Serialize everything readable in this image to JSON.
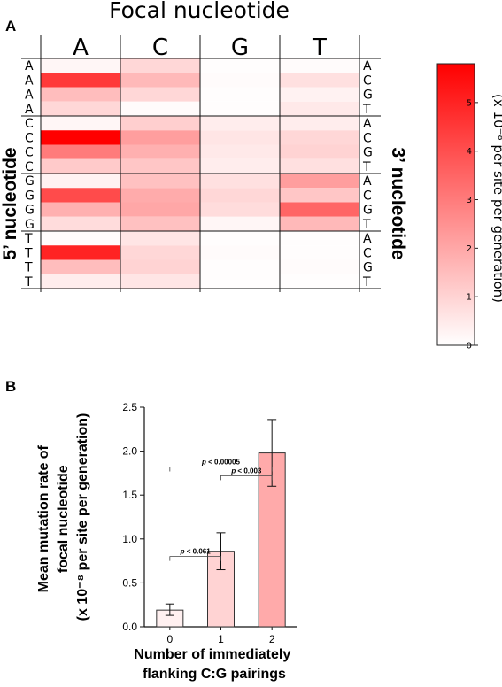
{
  "chart_data": [
    {
      "type": "heatmap",
      "panel": "A",
      "title": "Focal nucleotide",
      "ylabel_left": "5’ nucleotide",
      "ylabel_right": "3’ nucleotide",
      "columns": [
        "A",
        "C",
        "G",
        "T"
      ],
      "rows": [
        {
          "five": "A",
          "three": "A"
        },
        {
          "five": "A",
          "three": "C"
        },
        {
          "five": "A",
          "three": "G"
        },
        {
          "five": "A",
          "three": "T"
        },
        {
          "five": "C",
          "three": "A"
        },
        {
          "five": "C",
          "three": "C"
        },
        {
          "five": "C",
          "three": "G"
        },
        {
          "five": "C",
          "three": "T"
        },
        {
          "five": "G",
          "three": "A"
        },
        {
          "five": "G",
          "three": "C"
        },
        {
          "five": "G",
          "three": "G"
        },
        {
          "five": "G",
          "three": "T"
        },
        {
          "five": "T",
          "three": "A"
        },
        {
          "five": "T",
          "three": "C"
        },
        {
          "five": "T",
          "three": "G"
        },
        {
          "five": "T",
          "three": "T"
        }
      ],
      "values": [
        [
          0.2,
          0.9,
          0.05,
          0.1
        ],
        [
          4.5,
          1.6,
          0.1,
          0.7
        ],
        [
          1.5,
          0.9,
          0.05,
          0.3
        ],
        [
          0.9,
          0.1,
          0.05,
          0.5
        ],
        [
          0.2,
          1.1,
          0.4,
          0.4
        ],
        [
          5.8,
          2.2,
          0.6,
          0.9
        ],
        [
          3.0,
          1.8,
          0.5,
          1.0
        ],
        [
          1.2,
          1.3,
          0.4,
          0.7
        ],
        [
          0.3,
          1.4,
          0.7,
          2.2
        ],
        [
          4.1,
          1.9,
          0.9,
          1.3
        ],
        [
          1.8,
          2.0,
          0.8,
          3.5
        ],
        [
          0.8,
          1.4,
          0.2,
          1.6
        ],
        [
          0.1,
          0.6,
          0.05,
          0.05
        ],
        [
          5.0,
          0.9,
          0.1,
          0.05
        ],
        [
          1.5,
          1.0,
          0.05,
          0.1
        ],
        [
          0.4,
          0.6,
          0.05,
          0.05
        ]
      ],
      "colorbar": {
        "label": "(x 10⁻⁸ per site per generation)",
        "min": 0,
        "max": 5.8,
        "ticks": [
          "0",
          "1",
          "2",
          "3",
          "4",
          "5"
        ],
        "low_color": "#ffffff",
        "high_color": "#ff0000"
      }
    },
    {
      "type": "bar",
      "panel": "B",
      "categories": [
        "0",
        "1",
        "2"
      ],
      "values": [
        0.19,
        0.86,
        1.98
      ],
      "errors": [
        [
          0.13,
          0.26
        ],
        [
          0.65,
          1.07
        ],
        [
          1.6,
          2.36
        ]
      ],
      "bar_colors": [
        "#fff0f0",
        "#ffd3d3",
        "#ffaaaa"
      ],
      "ylim": [
        0,
        2.5
      ],
      "yticks": [
        "0.0",
        "0.5",
        "1.0",
        "1.5",
        "2.0",
        "2.5"
      ],
      "ylabel": [
        "Mean mutation rate of",
        "focal nucleotide",
        "(x 10⁻⁸ per site per generation)"
      ],
      "xlabel": [
        "Number of immediately",
        "flanking C:G pairings"
      ],
      "significance": [
        {
          "from": 0,
          "to": 1,
          "italic": "p",
          "text": " < 0.061"
        },
        {
          "from": 1,
          "to": 2,
          "italic": "p",
          "text": " < 0.003"
        },
        {
          "from": 0,
          "to": 2,
          "italic": "p",
          "text": " < 0.00005"
        }
      ]
    }
  ],
  "panel_letters": [
    "A",
    "B"
  ]
}
